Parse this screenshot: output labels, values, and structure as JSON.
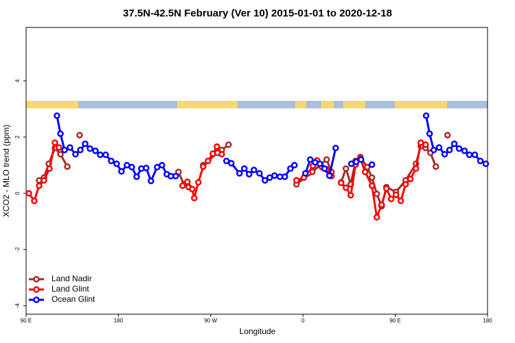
{
  "chart_data": {
    "type": "line",
    "title": "37.5N-42.5N February (Ver 10)   2015-01-01 to 2020-12-18",
    "xlabel": "Longitude",
    "ylabel": "XCO2 - MLO trend (ppm)",
    "xlim": [
      90,
      540
    ],
    "xticks": [
      {
        "value": 90,
        "label": "90 E"
      },
      180,
      {
        "value": 270,
        "label": "90 W"
      },
      {
        "value": 360,
        "label": "0"
      },
      {
        "value": 450,
        "label": "90 E"
      },
      {
        "value": 540,
        "label": "180"
      }
    ],
    "ylim": [
      -4.3,
      5.9
    ],
    "yticks": [
      -4,
      -2,
      0,
      2,
      4
    ],
    "legend": "bottom-left",
    "series": [
      {
        "name": "Land Nadir",
        "color": "#a52a2a",
        "x": [
          102.7,
          107.4,
          112.1,
          118.1,
          123.5,
          130.2,
          null,
          142.2,
          null,
          238.6,
          243.9,
          248.6,
          null,
          262.7,
          276.7,
          280.8,
          287.4,
          null,
          353.7,
          369.1,
          383.1,
          387.8,
          null,
          397.2,
          401.9,
          406.6,
          411.3,
          416,
          422.6,
          427.3,
          432,
          436.7,
          441.4,
          450.7,
          460.1,
          470.2,
          474.9,
          479.6,
          484.3,
          489.6,
          null,
          501
        ],
        "values": [
          0.46,
          0.56,
          1.05,
          1.61,
          1.39,
          0.95,
          null,
          2.07,
          null,
          0.76,
          0.32,
          0.22,
          null,
          1.0,
          1.44,
          1.54,
          1.73,
          null,
          0.32,
          0.76,
          1.2,
          0.76,
          null,
          0.39,
          0.88,
          0.32,
          1.15,
          1.29,
          0.93,
          0.56,
          -0.02,
          -0.46,
          0.22,
          0.05,
          0.46,
          1.05,
          1.68,
          1.61,
          1.44,
          0.95,
          null,
          2.07
        ]
      },
      {
        "name": "Land Glint",
        "color": "#ff0000",
        "x": [
          92.7,
          98,
          102.7,
          107.4,
          112.8,
          118.1,
          122.1,
          null,
          242.6,
          247.3,
          252,
          254,
          258,
          262.7,
          267.4,
          272.1,
          276.1,
          280.8,
          null,
          353.7,
          361,
          365,
          369.8,
          373.8,
          378.5,
          383.1,
          387.8,
          null,
          397.2,
          401.9,
          406.6,
          411.3,
          416,
          420.6,
          427.3,
          432,
          436.7,
          441.4,
          446,
          450.7,
          455.4,
          460.1,
          464.8,
          470.2,
          474.9,
          479.6
        ],
        "values": [
          0.0,
          -0.27,
          0.27,
          0.46,
          0.88,
          1.8,
          1.63,
          null,
          0.27,
          0.41,
          0.15,
          -0.17,
          0.39,
          0.95,
          1.15,
          1.41,
          1.66,
          1.39,
          null,
          0.46,
          0.56,
          0.71,
          0.98,
          1.17,
          0.93,
          0.85,
          0.61,
          null,
          0.37,
          0.2,
          -0.07,
          1.02,
          1.24,
          0.76,
          0.27,
          -0.85,
          -0.41,
          0.17,
          -0.2,
          -0.05,
          -0.27,
          0.32,
          0.51,
          0.88,
          1.8,
          1.73
        ]
      },
      {
        "name": "Ocean Glint",
        "color": "#0000ff",
        "x": [
          120.1,
          123.5,
          127.5,
          132.8,
          138.2,
          142.9,
          147.6,
          152.3,
          157.6,
          162.3,
          167.6,
          173,
          178.3,
          183,
          188.4,
          193.1,
          197.8,
          202.4,
          207.1,
          211.8,
          217.8,
          222.5,
          227.2,
          231.2,
          235.9,
          null,
          285.4,
          290.1,
          298.1,
          302.8,
          307.5,
          312.2,
          317.6,
          322.9,
          327.6,
          332.3,
          337.6,
          342.3,
          347.7,
          351.7,
          null,
          362.4,
          367.1,
          371.8,
          376.5,
          381.1,
          385.8,
          391.9,
          null,
          407.2,
          411.9,
          416.6,
          null,
          427.3,
          null,
          480.1,
          483.5,
          487.5,
          492.8,
          498.2,
          502.9,
          507.6,
          512.3,
          517.6,
          522.3,
          527.6,
          533,
          538.3
        ],
        "values": [
          2.76,
          2.12,
          1.54,
          1.63,
          1.39,
          1.54,
          1.76,
          1.59,
          1.51,
          1.37,
          1.37,
          1.15,
          1.05,
          0.78,
          1.0,
          0.93,
          0.59,
          0.88,
          0.9,
          0.44,
          0.93,
          1.0,
          0.68,
          0.61,
          0.61,
          null,
          1.15,
          1.07,
          0.71,
          0.88,
          0.68,
          0.83,
          0.71,
          0.46,
          0.56,
          0.63,
          0.59,
          0.59,
          0.88,
          1.0,
          null,
          0.71,
          1.2,
          1.1,
          1.05,
          0.88,
          0.63,
          1.61,
          null,
          1.05,
          1.12,
          1.2,
          null,
          1.02,
          null,
          2.76,
          2.12,
          1.54,
          1.63,
          1.39,
          1.54,
          1.76,
          1.59,
          1.51,
          1.37,
          1.37,
          1.15,
          1.05
        ]
      }
    ]
  }
}
